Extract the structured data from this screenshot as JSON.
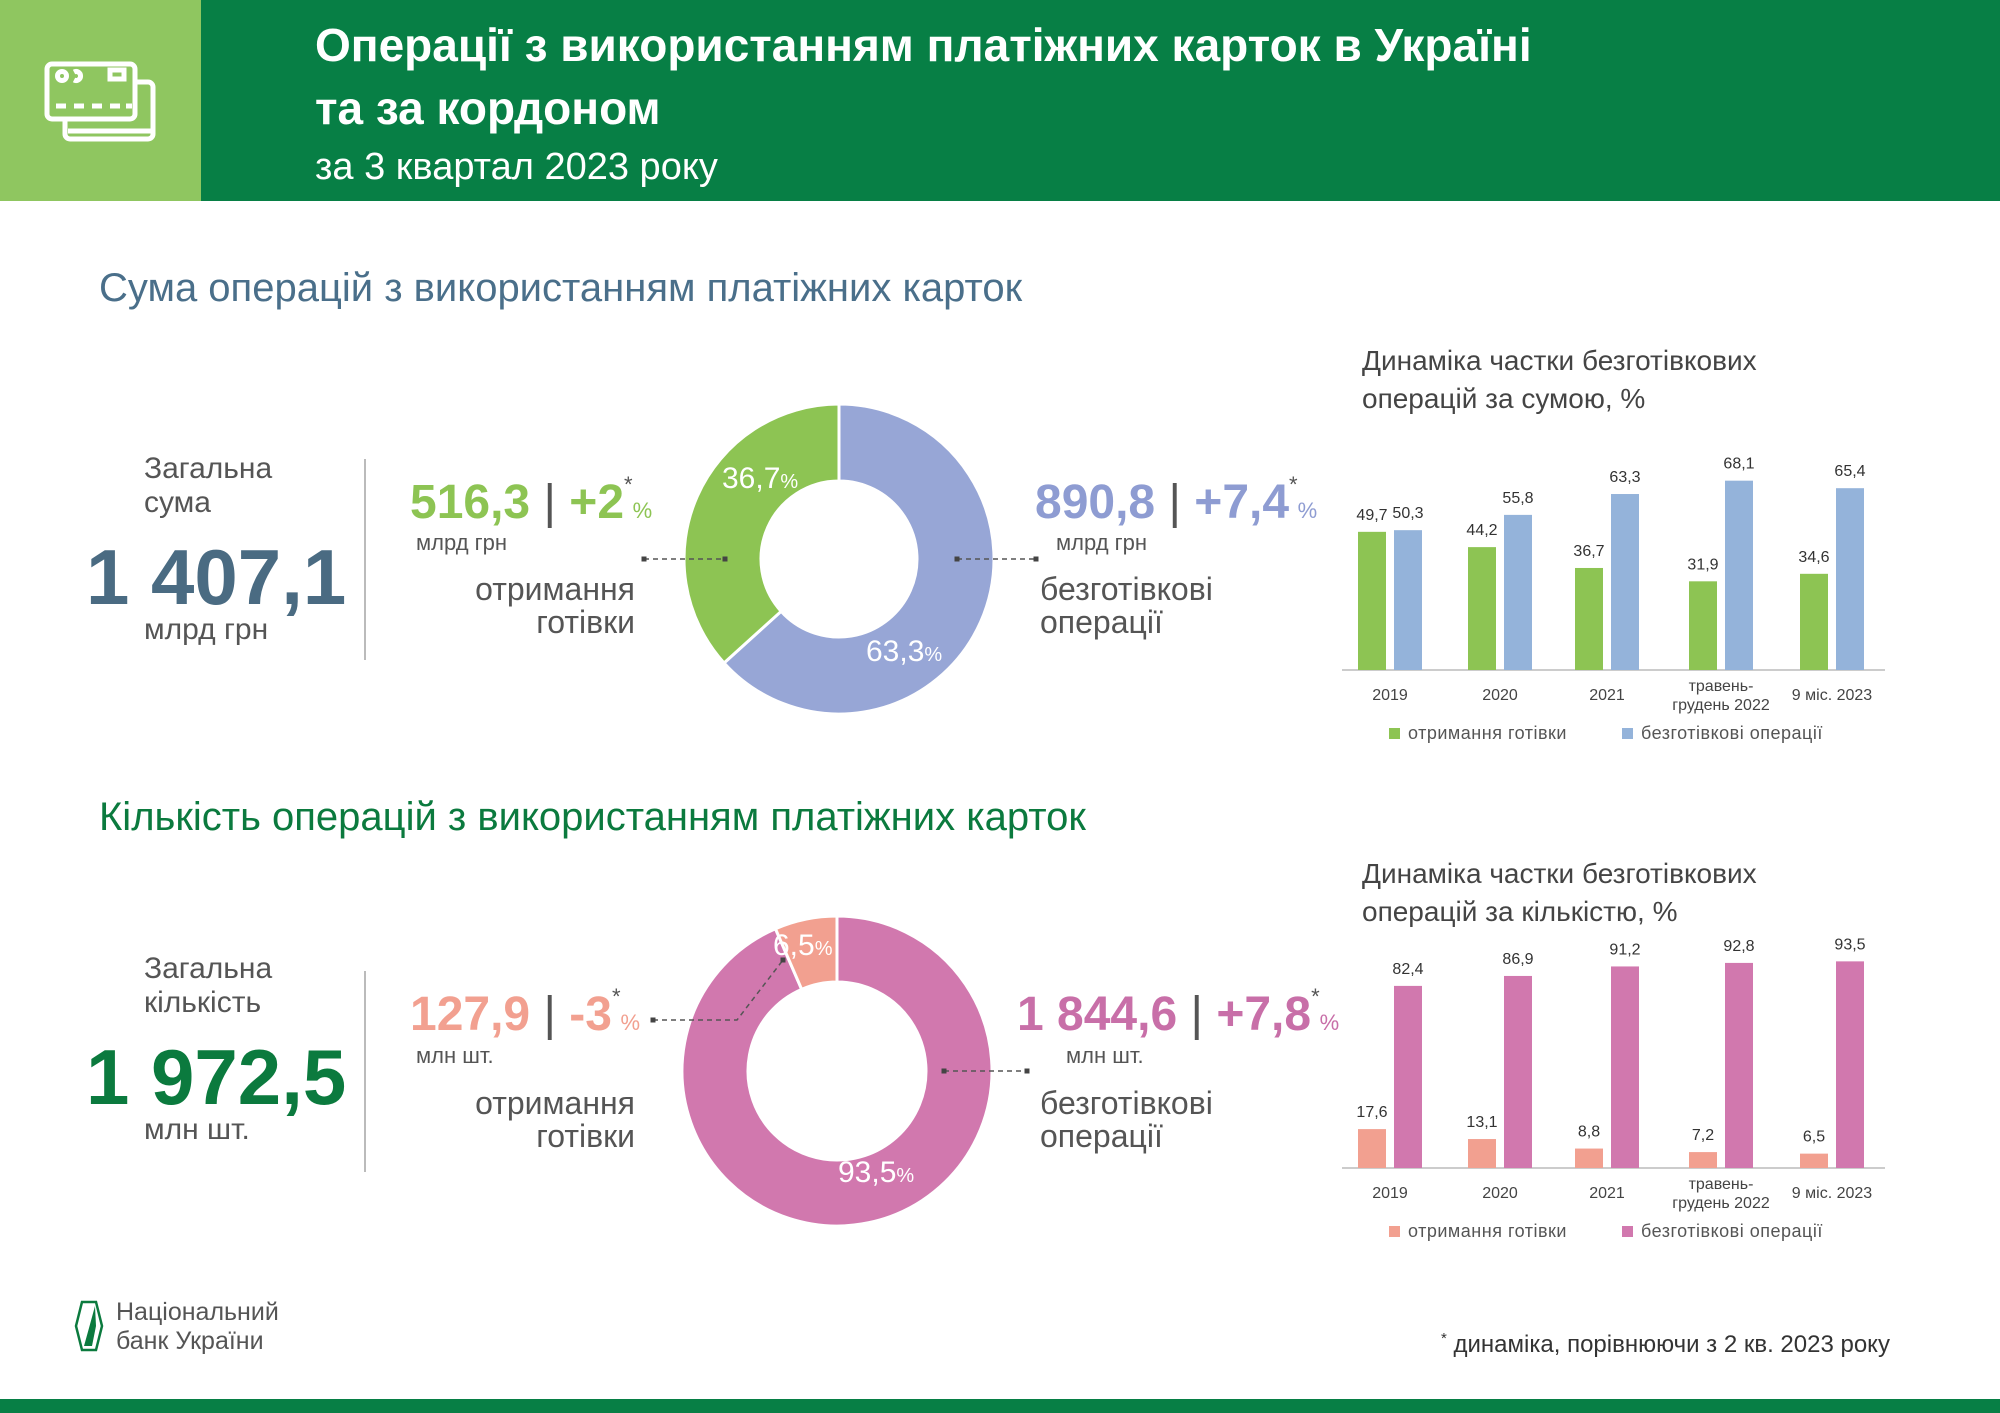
{
  "header": {
    "title_line1": "Операції з використанням платіжних карток в Україні",
    "title_line2": "та за кордоном",
    "subtitle": "за 3 квартал 2023 року",
    "icon": "credit-cards-icon"
  },
  "colors": {
    "header_green": "#077f45",
    "light_green": "#8fc660",
    "cash_sum": "#8dc453",
    "cashless_sum": "#97a6d6",
    "cashless_bar_sum": "#94b3da",
    "cash_count": "#f2a090",
    "cashless_count": "#d178ae",
    "sum_accent": "#4a6b82",
    "count_accent": "#0b7a3e"
  },
  "sum": {
    "section_title": "Сума операцій з використанням платіжних карток",
    "total_label_1": "Загальна",
    "total_label_2": "сума",
    "total_value": "1 407,1",
    "total_unit": "млрд грн",
    "cash": {
      "value": "516,3",
      "change": "+2",
      "unit": "млрд грн",
      "label_1": "отримання",
      "label_2": "готівки",
      "share": 36.7,
      "share_label": "36,7"
    },
    "cashless": {
      "value": "890,8",
      "change": "+7,4",
      "unit": "млрд грн",
      "label_1": "безготівкові",
      "label_2": "операції",
      "share": 63.3,
      "share_label": "63,3"
    }
  },
  "count": {
    "section_title": "Кількість операцій з використанням платіжних карток",
    "total_label_1": "Загальна",
    "total_label_2": "кількість",
    "total_value": "1 972,5",
    "total_unit": "млн шт.",
    "cash": {
      "value": "127,9",
      "change": "-3",
      "unit": "млн шт.",
      "label_1": "отримання",
      "label_2": "готівки",
      "share": 6.5,
      "share_label": "6,5"
    },
    "cashless": {
      "value": "1 844,6",
      "change": "+7,8",
      "unit": "млн шт.",
      "label_1": "безготівкові",
      "label_2": "операції",
      "share": 93.5,
      "share_label": "93,5"
    }
  },
  "common": {
    "percent": "%",
    "star": "*",
    "sep": "|"
  },
  "chart_data": [
    {
      "type": "bar",
      "title_line1": "Динаміка частки безготівкових",
      "title_line2": "операцій за сумою, %",
      "categories": [
        [
          "2019"
        ],
        [
          "2020"
        ],
        [
          "2021"
        ],
        [
          "травень-",
          "грудень 2022"
        ],
        [
          "9 міс. 2023"
        ]
      ],
      "series": [
        {
          "name": "отримання готівки",
          "color": "#8dc453",
          "values": [
            49.7,
            44.2,
            36.7,
            31.9,
            34.6
          ],
          "labels": [
            "49,7",
            "44,2",
            "36,7",
            "31,9",
            "34,6"
          ]
        },
        {
          "name": "безготівкові операції",
          "color": "#94b3da",
          "values": [
            50.3,
            55.8,
            63.3,
            68.1,
            65.4
          ],
          "labels": [
            "50,3",
            "55,8",
            "63,3",
            "68,1",
            "65,4"
          ]
        }
      ],
      "legend": "bottom",
      "grid": false
    },
    {
      "type": "bar",
      "title_line1": "Динаміка частки безготівкових",
      "title_line2": "операцій за кількістю, %",
      "categories": [
        [
          "2019"
        ],
        [
          "2020"
        ],
        [
          "2021"
        ],
        [
          "травень-",
          "грудень 2022"
        ],
        [
          "9 міс. 2023"
        ]
      ],
      "series": [
        {
          "name": "отримання готівки",
          "color": "#f2a090",
          "values": [
            17.6,
            13.1,
            8.8,
            7.2,
            6.5
          ],
          "labels": [
            "17,6",
            "13,1",
            "8,8",
            "7,2",
            "6,5"
          ]
        },
        {
          "name": "безготівкові операції",
          "color": "#d178ae",
          "values": [
            82.4,
            86.9,
            91.2,
            92.8,
            93.5
          ],
          "labels": [
            "82,4",
            "86,9",
            "91,2",
            "92,8",
            "93,5"
          ]
        }
      ],
      "legend": "bottom",
      "grid": false
    }
  ],
  "footer": {
    "logo_line1": "Національний",
    "logo_line2": "банк України",
    "footnote_star": "*",
    "footnote": " динаміка, порівнюючи з 2 кв. 2023 року"
  }
}
